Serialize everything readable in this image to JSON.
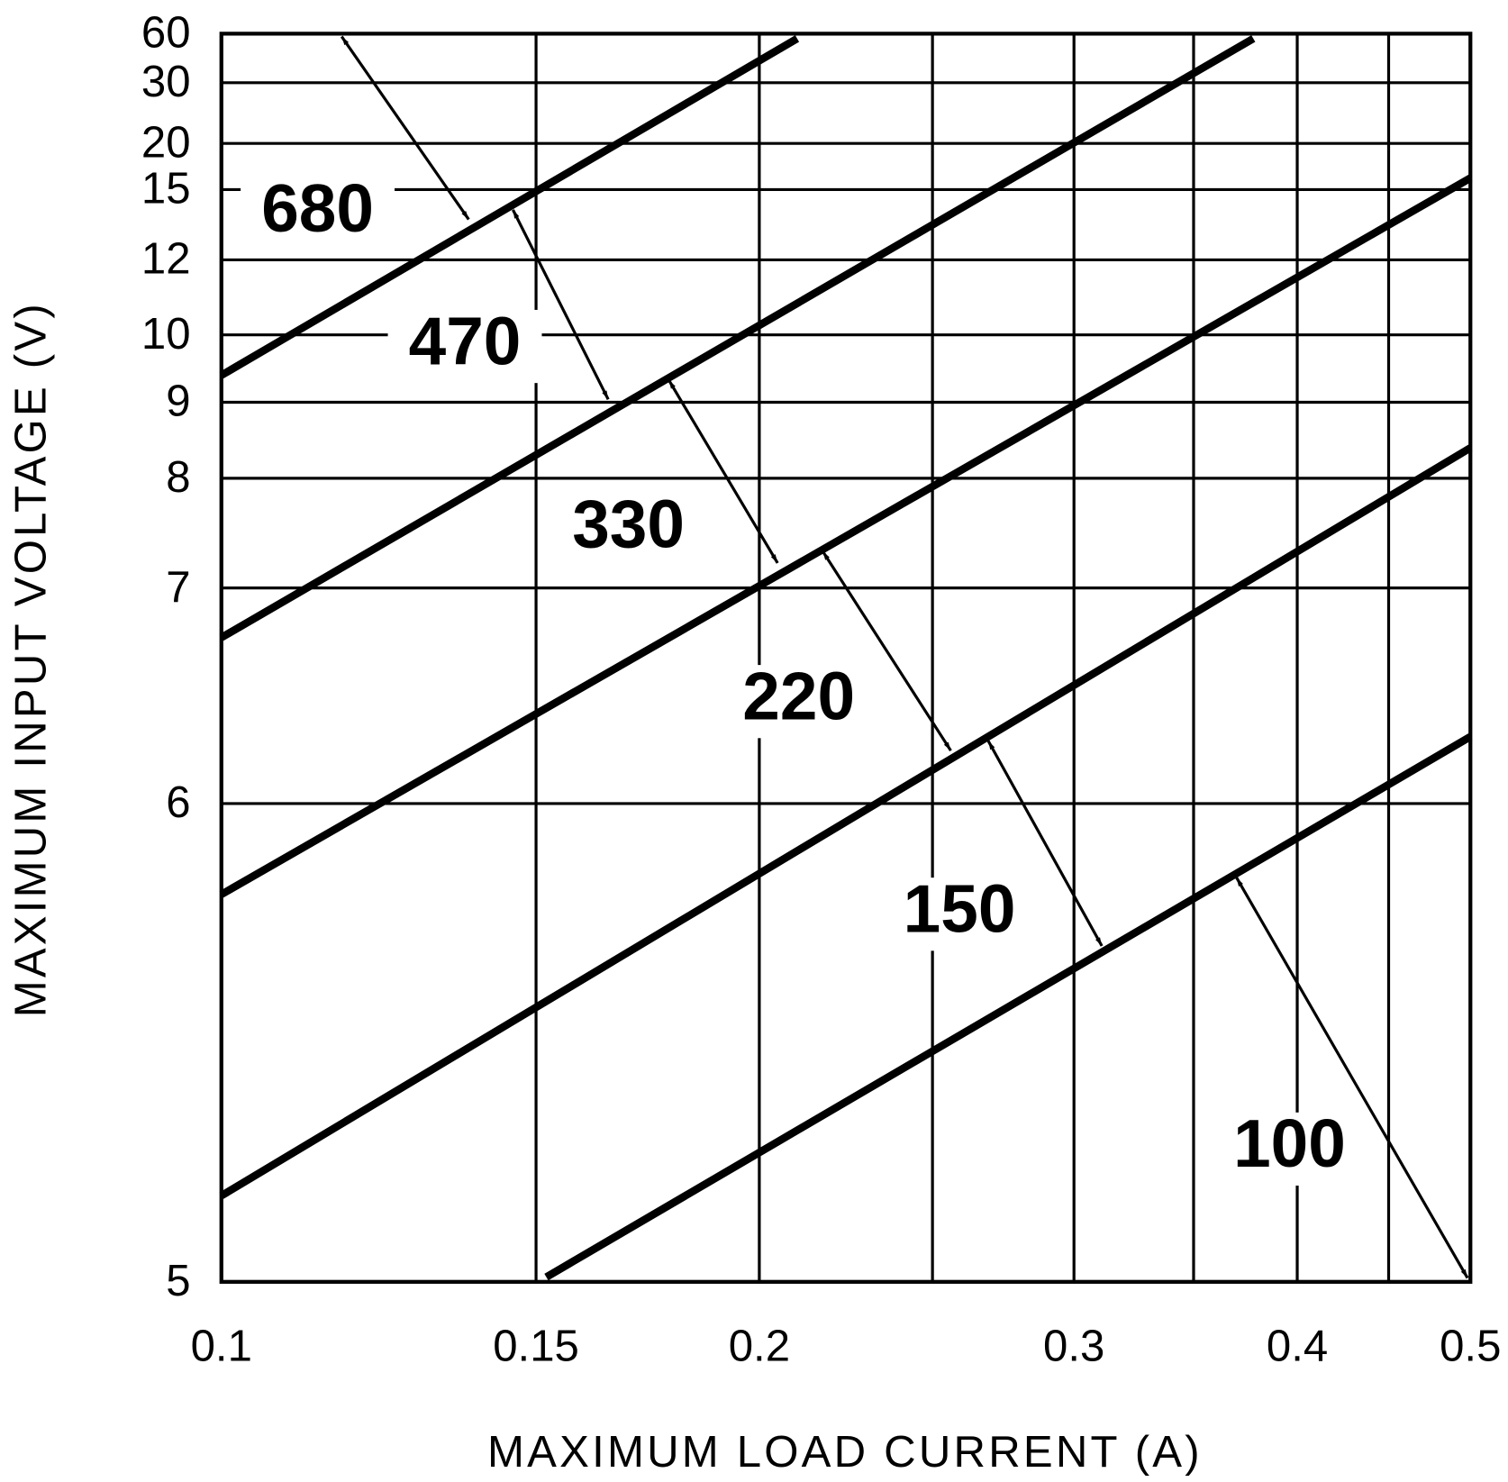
{
  "chart_data": {
    "type": "line",
    "x_label": "MAXIMUM LOAD CURRENT (A)",
    "y_label": "MAXIMUM INPUT VOLTAGE (V)",
    "x_scale": "log",
    "xlim": [
      0.1,
      0.5
    ],
    "xticks": [
      0.1,
      0.15,
      0.2,
      0.3,
      0.4,
      0.5
    ],
    "x_minor_grid": [
      0.25,
      0.35,
      0.45
    ],
    "ylim": [
      5,
      60
    ],
    "yticks": [
      5,
      6,
      7,
      8,
      9,
      10,
      12,
      15,
      20,
      30,
      60
    ],
    "grid": true,
    "color": "#000000",
    "series": [
      {
        "x": [
          0.1,
          0.21
        ],
        "values": [
          9.4,
          57
        ]
      },
      {
        "x": [
          0.1,
          0.378
        ],
        "values": [
          6.77,
          57
        ]
      },
      {
        "x": [
          0.1,
          0.5
        ],
        "values": [
          5.81,
          16.25
        ]
      },
      {
        "x": [
          0.1,
          0.5
        ],
        "values": [
          5.18,
          8.4
        ]
      },
      {
        "x": [
          0.152,
          0.5
        ],
        "values": [
          5.01,
          6.31
        ]
      }
    ],
    "annotations": [
      "680",
      "470",
      "330",
      "220",
      "150",
      "100"
    ]
  }
}
